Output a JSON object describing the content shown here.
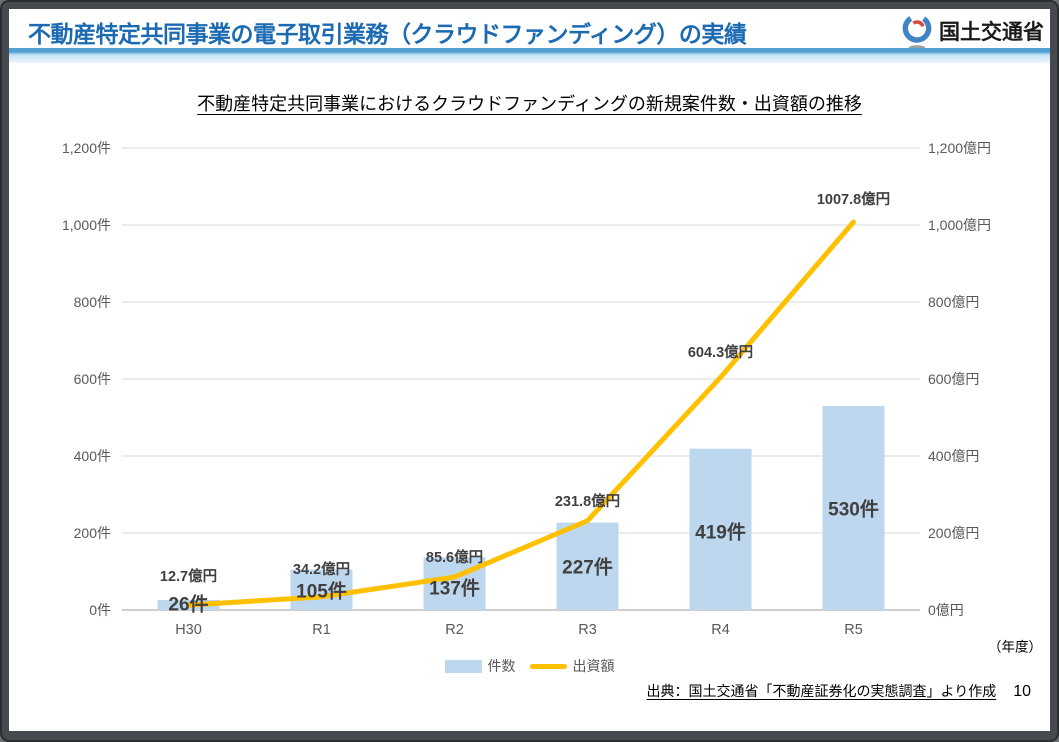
{
  "header": {
    "title": "不動産特定共同事業の電子取引業務（クラウドファンディング）の実績",
    "agency": "国土交通省"
  },
  "chart_data": {
    "type": "bar+line combo",
    "title": "不動産特定共同事業におけるクラウドファンディングの新規案件数・出資額の推移",
    "categories": [
      "H30",
      "R1",
      "R2",
      "R3",
      "R4",
      "R5"
    ],
    "series": [
      {
        "name": "件数",
        "type": "bar",
        "axis": "left",
        "values": [
          26,
          105,
          137,
          227,
          419,
          530
        ],
        "labels": [
          "26件",
          "105件",
          "137件",
          "227件",
          "419件",
          "530件"
        ],
        "color": "#BDD7EE"
      },
      {
        "name": "出資額",
        "type": "line",
        "axis": "right",
        "values": [
          12.7,
          34.2,
          85.6,
          231.8,
          604.3,
          1007.8
        ],
        "labels": [
          "12.7億円",
          "34.2億円",
          "85.6億円",
          "231.8億円",
          "604.3億円",
          "1007.8億円"
        ],
        "color": "#FFC000"
      }
    ],
    "left_axis": {
      "ylim": [
        0,
        1200
      ],
      "tick_values": [
        0,
        200,
        400,
        600,
        800,
        1000,
        1200
      ],
      "tick_labels": [
        "0件",
        "200件",
        "400件",
        "600件",
        "800件",
        "1,000件",
        "1,200件"
      ]
    },
    "right_axis": {
      "ylim": [
        0,
        1200
      ],
      "tick_values": [
        0,
        200,
        400,
        600,
        800,
        1000,
        1200
      ],
      "tick_labels": [
        "0億円",
        "200億円",
        "400億円",
        "600億円",
        "800億円",
        "1,000億円",
        "1,200億円"
      ]
    },
    "x_unit_label": "（年度）",
    "grid": true,
    "legend_position": "bottom"
  },
  "footer": {
    "source": "出典：国土交通省「不動産証券化の実態調査」より作成",
    "page_number": "10"
  },
  "colors": {
    "bar": "#BDD7EE",
    "line": "#FFC000",
    "header_title": "#1B6AB2",
    "gridline": "#D9D9D9",
    "axis_line": "#BFBFBF",
    "tick_text": "#595959",
    "data_label": "#404040"
  }
}
